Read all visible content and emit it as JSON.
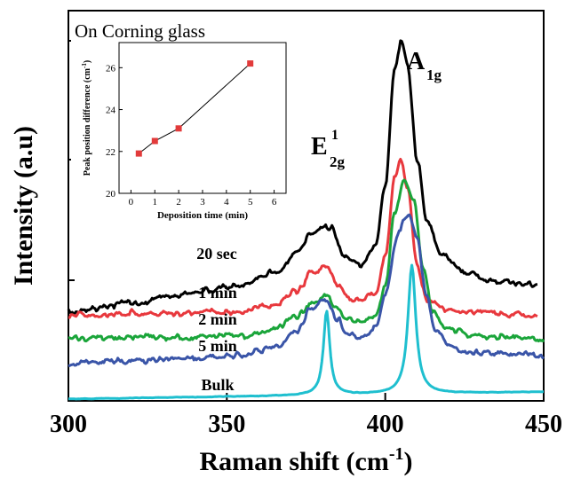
{
  "chart_data": [
    {
      "type": "line",
      "xlabel": "Raman shift (cm",
      "xlabel_sup": "-1",
      "xlabel_close": ")",
      "ylabel": "Intensity (a.u)",
      "xlim": [
        300,
        450
      ],
      "x_ticks": [
        300,
        350,
        400,
        450
      ],
      "grid": false,
      "colors": {
        "20 sec": "#000000",
        "1 min": "#e8383d",
        "2 min": "#1aa53a",
        "5 min": "#3a55a8",
        "Bulk": "#1fbfcf"
      },
      "series": [
        {
          "name": "20 sec",
          "color": "#000000",
          "baseline_start": 101,
          "baseline_end": 132,
          "x": [
            300,
            320,
            340,
            355,
            365,
            372,
            377,
            380,
            383,
            387,
            392,
            397,
            400,
            403,
            405,
            407,
            410,
            413,
            418,
            425,
            435,
            448
          ],
          "rel": [
            0,
            5,
            13,
            19,
            30,
            50,
            72,
            79,
            76,
            47,
            32,
            55,
            120,
            250,
            285,
            258,
            150,
            80,
            40,
            18,
            6,
            0
          ]
        },
        {
          "name": "1 min",
          "color": "#e8383d",
          "baseline_start": 97,
          "baseline_end": 98,
          "x": [
            300,
            330,
            355,
            365,
            372,
            377,
            381,
            385,
            388,
            392,
            397,
            400,
            403,
            405,
            407,
            410,
            413,
            418,
            425,
            448
          ],
          "rel": [
            0,
            2,
            4,
            10,
            27,
            47,
            55,
            32,
            18,
            16,
            26,
            64,
            155,
            176,
            144,
            55,
            17,
            6,
            2,
            0
          ]
        },
        {
          "name": "2 min",
          "color": "#1aa53a",
          "baseline_start": 70,
          "baseline_end": 70,
          "x": [
            300,
            330,
            355,
            365,
            372,
            377,
            381,
            385,
            388,
            393,
            397,
            400,
            403,
            406,
            409,
            412,
            415,
            420,
            430,
            450
          ],
          "rel": [
            0,
            2,
            4,
            9,
            25,
            42,
            50,
            33,
            21,
            19,
            27,
            58,
            145,
            178,
            160,
            78,
            30,
            10,
            3,
            0
          ]
        },
        {
          "name": "5 min",
          "color": "#3a55a8",
          "baseline_start": 43,
          "baseline_end": 51,
          "x": [
            300,
            330,
            355,
            365,
            372,
            377,
            381,
            385,
            388,
            392,
            397,
            400,
            404,
            407,
            410,
            413,
            416,
            420,
            430,
            450
          ],
          "rel": [
            0,
            2,
            6,
            14,
            32,
            58,
            67,
            44,
            27,
            24,
            35,
            71,
            140,
            162,
            136,
            68,
            30,
            12,
            3,
            0
          ]
        },
        {
          "name": "Bulk",
          "color": "#1fbfcf",
          "baseline_start": 2,
          "baseline_end": 10,
          "peaks": [
            {
              "center": 381.5,
              "height": 95,
              "width": 1.2
            },
            {
              "center": 408.4,
              "height": 145,
              "width": 1.5
            }
          ]
        }
      ],
      "series_labels": [
        "20 sec",
        "1 min",
        "2 min",
        "5 min",
        "Bulk"
      ],
      "peak_labels": [
        {
          "main": "E",
          "sub": "2g",
          "sup": "1"
        },
        {
          "main": "A",
          "sub": "1g"
        }
      ]
    },
    {
      "type": "scatter",
      "title": "On Corning glass",
      "xlabel": "Deposition time (min)",
      "ylabel": "Peak position difference (cm",
      "ylabel_sup": "-1",
      "ylabel_close": ")",
      "xlim": [
        -0.5,
        6.5
      ],
      "ylim": [
        20,
        27.2
      ],
      "x_ticks": [
        0,
        1,
        2,
        3,
        4,
        5,
        6
      ],
      "y_ticks": [
        20,
        22,
        24,
        26
      ],
      "x": [
        0.33,
        1,
        2,
        5
      ],
      "y": [
        21.9,
        22.5,
        23.1,
        26.2
      ],
      "marker_color": "#e23b3b",
      "line_color": "#000000"
    }
  ]
}
